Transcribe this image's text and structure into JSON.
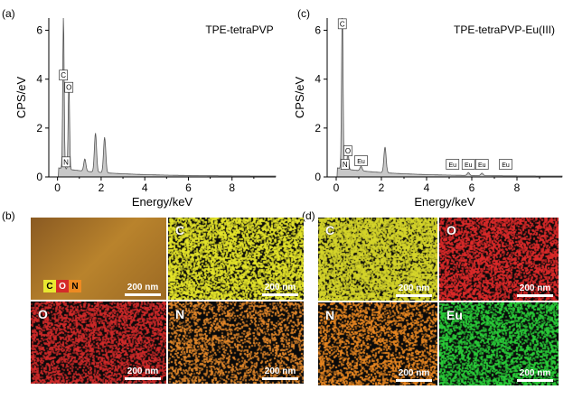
{
  "panels": {
    "a": {
      "letter": "(a)",
      "title": "TPE-tetraPVP"
    },
    "b": {
      "letter": "(b)"
    },
    "c": {
      "letter": "(c)",
      "title": "TPE-tetraPVP-Eu(III)"
    },
    "d": {
      "letter": "(d)"
    }
  },
  "chart_data": [
    {
      "type": "area",
      "title": "TPE-tetraPVP",
      "xlabel": "Energy/keV",
      "ylabel": "CPS/eV",
      "xlim": [
        -0.4,
        10
      ],
      "ylim": [
        0,
        6.5
      ],
      "x_ticks": [
        "0",
        "2",
        "4",
        "6",
        "8"
      ],
      "y_ticks": [
        "0",
        "2",
        "4",
        "6"
      ],
      "peaks": [
        {
          "x": 0.27,
          "y": 6.3
        },
        {
          "x": 0.52,
          "y": 3.6
        },
        {
          "x": 1.25,
          "y": 0.5
        },
        {
          "x": 1.74,
          "y": 1.6
        },
        {
          "x": 2.16,
          "y": 1.45
        }
      ],
      "annotations": [
        {
          "label": "C",
          "x": 0.27,
          "y": 4.0
        },
        {
          "label": "O",
          "x": 0.52,
          "y": 3.5
        },
        {
          "label": "N",
          "x": 0.39,
          "y": 0.45
        }
      ]
    },
    {
      "type": "area",
      "title": "TPE-tetraPVP-Eu(III)",
      "xlabel": "Energy/keV",
      "ylabel": "CPS/eV",
      "xlim": [
        -0.4,
        10
      ],
      "ylim": [
        0,
        6.5
      ],
      "x_ticks": [
        "0",
        "2",
        "4",
        "6",
        "8"
      ],
      "y_ticks": [
        "0",
        "2",
        "4",
        "6"
      ],
      "peaks": [
        {
          "x": 0.27,
          "y": 6.5
        },
        {
          "x": 0.52,
          "y": 0.8
        },
        {
          "x": 1.1,
          "y": 0.18
        },
        {
          "x": 2.16,
          "y": 1.05
        },
        {
          "x": 5.85,
          "y": 0.12
        },
        {
          "x": 6.45,
          "y": 0.1
        }
      ],
      "annotations": [
        {
          "label": "C",
          "x": 0.27,
          "y": 6.1
        },
        {
          "label": "O",
          "x": 0.52,
          "y": 0.9
        },
        {
          "label": "N",
          "x": 0.39,
          "y": 0.35
        },
        {
          "label": "Eu",
          "x": 1.1,
          "y": 0.5
        },
        {
          "label": "Eu",
          "x": 5.15,
          "y": 0.35
        },
        {
          "label": "Eu",
          "x": 5.85,
          "y": 0.35
        },
        {
          "label": "Eu",
          "x": 6.45,
          "y": 0.35
        },
        {
          "label": "Eu",
          "x": 7.5,
          "y": 0.35
        }
      ]
    }
  ],
  "maps_b": [
    {
      "element": "",
      "scale": "200 nm",
      "color": "#b07a2a",
      "legend": [
        "C",
        "O",
        "N"
      ]
    },
    {
      "element": "C",
      "scale": "200 nm",
      "color": "#e6e62a"
    },
    {
      "element": "O",
      "scale": "200 nm",
      "color": "#d42a2a"
    },
    {
      "element": "N",
      "scale": "200 nm",
      "color": "#e88a2a"
    }
  ],
  "maps_d": [
    {
      "element": "C",
      "scale": "200 nm",
      "color": "#d6d62a"
    },
    {
      "element": "O",
      "scale": "200 nm",
      "color": "#e02a2a"
    },
    {
      "element": "N",
      "scale": "200 nm",
      "color": "#ee8a22"
    },
    {
      "element": "Eu",
      "scale": "200 nm",
      "color": "#2ad23a"
    }
  ]
}
